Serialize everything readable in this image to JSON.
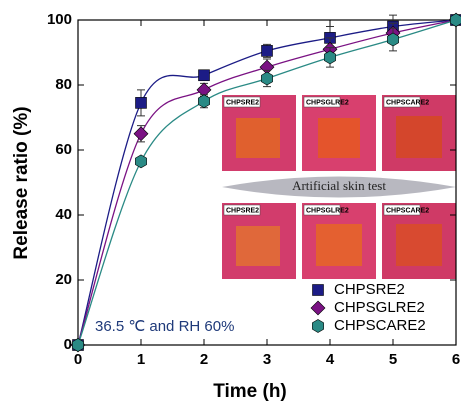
{
  "chart_data": {
    "type": "scatter",
    "x_label": "Time (h)",
    "y_label": "Release ratio (%)",
    "x": [
      0,
      1,
      2,
      3,
      4,
      5,
      6
    ],
    "series": [
      {
        "name": "CHPSRE2",
        "color": "#1c1c86",
        "marker": "square",
        "values": [
          0,
          74.5,
          83,
          90.5,
          94.5,
          98,
          100
        ],
        "errors": [
          0,
          4,
          1.5,
          2,
          3.5,
          3.5,
          1
        ]
      },
      {
        "name": "CHPSGLRE2",
        "color": "#7a1283",
        "marker": "diamond",
        "values": [
          0,
          65,
          78.5,
          85.5,
          91,
          96,
          100
        ],
        "errors": [
          0,
          2.5,
          2,
          2.5,
          3.5,
          3,
          0
        ]
      },
      {
        "name": "CHPSCARE2",
        "color": "#2a8a85",
        "marker": "hexagon",
        "values": [
          0,
          56.5,
          75,
          82,
          88.5,
          94,
          100
        ],
        "errors": [
          0,
          1,
          2,
          2.5,
          3,
          3.5,
          0
        ]
      }
    ],
    "xlim": [
      0,
      6
    ],
    "ylim": [
      0,
      100
    ],
    "xticks": [
      0,
      1,
      2,
      3,
      4,
      5,
      6
    ],
    "yticks": [
      0,
      20,
      40,
      60,
      80,
      100
    ],
    "annotations": [
      "36.5 ℃ and RH 60%",
      "Artificial skin test"
    ],
    "inset_labels": [
      "CHPSRE2",
      "CHPSGLRE2",
      "CHPSCARE2",
      "CHPSRE2",
      "CHPSGLRE2",
      "CHPSCARE2"
    ],
    "legend": "lower right"
  }
}
